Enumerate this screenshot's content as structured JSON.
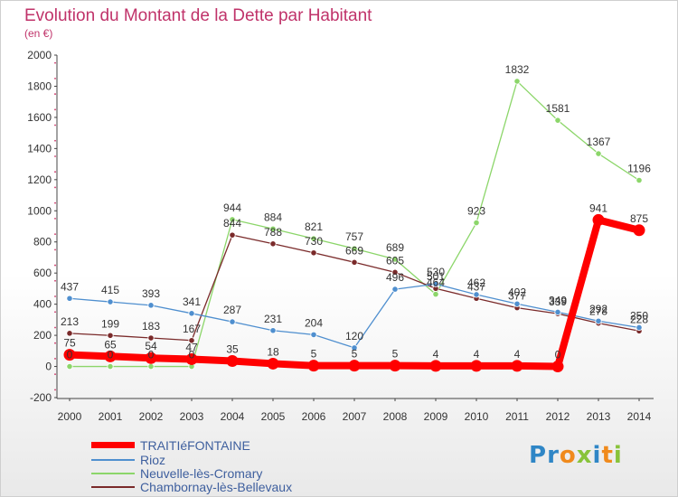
{
  "chart_data": {
    "type": "line",
    "title": "Evolution du Montant de la Dette par Habitant",
    "subtitle": "(en €)",
    "x": [
      "2000",
      "2001",
      "2002",
      "2003",
      "2004",
      "2005",
      "2006",
      "2007",
      "2008",
      "2009",
      "2010",
      "2011",
      "2012",
      "2013",
      "2014"
    ],
    "ylim": [
      -200,
      2000
    ],
    "yticks": [
      -200,
      0,
      200,
      400,
      600,
      800,
      1000,
      1200,
      1400,
      1600,
      1800,
      2000
    ],
    "grid": false,
    "legend_position": "bottom-left",
    "series": [
      {
        "name": "TRAITIéFONTAINE",
        "color": "#ff0000",
        "values": [
          75,
          65,
          54,
          47,
          35,
          18,
          5,
          5,
          5,
          4,
          4,
          4,
          0,
          941,
          875
        ]
      },
      {
        "name": "Rioz",
        "color": "#4f8fcf",
        "values": [
          437,
          415,
          393,
          341,
          287,
          231,
          204,
          120,
          496,
          530,
          462,
          402,
          349,
          292,
          250
        ]
      },
      {
        "name": "Neuvelle-lès-Cromary",
        "color": "#8cd66a",
        "values": [
          0,
          0,
          0,
          0,
          944,
          884,
          821,
          757,
          689,
          464,
          923,
          1832,
          1581,
          1367,
          1196
        ]
      },
      {
        "name": "Chambornay-lès-Bellevaux",
        "color": "#7a2a2a",
        "values": [
          213,
          199,
          183,
          167,
          844,
          788,
          730,
          669,
          605,
          501,
          437,
          377,
          339,
          278,
          228
        ]
      }
    ]
  },
  "brand": "Proxiti"
}
